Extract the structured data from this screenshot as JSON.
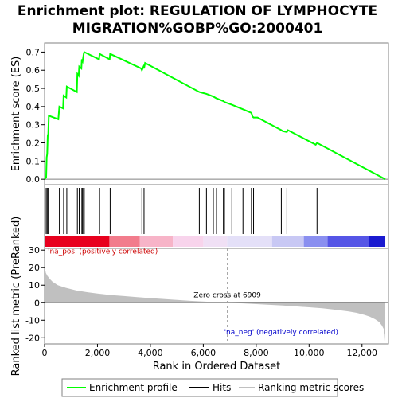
{
  "chart_data": [
    {
      "type": "line",
      "title": "Enrichment plot: REGULATION OF LYMPHOCYTE MIGRATION%GOBP%GO:2000401",
      "title_lines": [
        "Enrichment plot: REGULATION OF LYMPHOCYTE",
        "MIGRATION%GOBP%GO:2000401"
      ],
      "ylabel": "Enrichment score (ES)",
      "xlim": [
        0,
        13000
      ],
      "ylim": [
        -0.03,
        0.75
      ],
      "yticks": [
        0.0,
        0.1,
        0.2,
        0.3,
        0.4,
        0.5,
        0.6,
        0.7
      ],
      "ytick_labels": [
        "0.0",
        "0.1",
        "0.2",
        "0.3",
        "0.4",
        "0.5",
        "0.6",
        "0.7"
      ],
      "grid": false,
      "series": [
        {
          "name": "Enrichment profile",
          "color": "#00ff00",
          "x": [
            0,
            60,
            80,
            100,
            120,
            140,
            160,
            520,
            560,
            700,
            720,
            820,
            840,
            1220,
            1240,
            1290,
            1310,
            1390,
            1410,
            1440,
            1480,
            1500,
            2060,
            2080,
            2460,
            2480,
            3650,
            3680,
            3740,
            3760,
            3800,
            5850,
            6120,
            6380,
            6500,
            6760,
            6800,
            7080,
            7500,
            7820,
            7860,
            7900,
            8050,
            8950,
            9000,
            9160,
            9200,
            10250,
            10300,
            12880
          ],
          "y": [
            0.0,
            0.01,
            0.12,
            0.14,
            0.24,
            0.25,
            0.35,
            0.33,
            0.4,
            0.39,
            0.46,
            0.45,
            0.51,
            0.48,
            0.58,
            0.57,
            0.62,
            0.61,
            0.66,
            0.65,
            0.69,
            0.7,
            0.66,
            0.69,
            0.66,
            0.69,
            0.61,
            0.6,
            0.62,
            0.61,
            0.64,
            0.48,
            0.47,
            0.455,
            0.445,
            0.43,
            0.425,
            0.41,
            0.385,
            0.365,
            0.345,
            0.34,
            0.34,
            0.27,
            0.265,
            0.26,
            0.27,
            0.19,
            0.2,
            0.0
          ]
        }
      ]
    },
    {
      "type": "hits",
      "name": "Hits",
      "xlim": [
        0,
        13000
      ],
      "hit_positions": [
        60,
        100,
        140,
        160,
        560,
        720,
        840,
        1240,
        1310,
        1410,
        1440,
        1480,
        1500,
        2080,
        2480,
        3680,
        3760,
        5850,
        6120,
        6380,
        6500,
        6760,
        6800,
        7080,
        7500,
        7820,
        7900,
        8950,
        9160,
        10300
      ],
      "color_band": {
        "segments": [
          {
            "from": 0,
            "to": 2450,
            "color": "#e8001e"
          },
          {
            "from": 2450,
            "to": 3600,
            "color": "#f27c8c"
          },
          {
            "from": 3600,
            "to": 4850,
            "color": "#f7b4c8"
          },
          {
            "from": 4850,
            "to": 6000,
            "color": "#f8d4ec"
          },
          {
            "from": 6000,
            "to": 6900,
            "color": "#f0e0f5"
          },
          {
            "from": 6900,
            "to": 8600,
            "color": "#e4e0f8"
          },
          {
            "from": 8600,
            "to": 9800,
            "color": "#c8c8f4"
          },
          {
            "from": 9800,
            "to": 10700,
            "color": "#8a8ff0"
          },
          {
            "from": 10700,
            "to": 12250,
            "color": "#5555e6"
          },
          {
            "from": 12250,
            "to": 12880,
            "color": "#1a1ad0"
          }
        ]
      }
    },
    {
      "type": "area",
      "ylabel": "Ranked list metric (PreRanked)",
      "xlabel": "Rank in Ordered Dataset",
      "xlim": [
        0,
        13000
      ],
      "ylim": [
        -23.5,
        31
      ],
      "yticks": [
        -20,
        -10,
        0,
        10,
        20,
        30
      ],
      "ytick_labels": [
        "-20",
        "-10",
        "0",
        "10",
        "20",
        "30"
      ],
      "xticks": [
        0,
        2000,
        4000,
        6000,
        8000,
        10000,
        12000
      ],
      "xtick_labels": [
        "0",
        "2,000",
        "4,000",
        "6,000",
        "8,000",
        "10,000",
        "12,000"
      ],
      "x": [
        0,
        20,
        50,
        100,
        200,
        300,
        500,
        800,
        1200,
        1600,
        2000,
        2500,
        3000,
        3500,
        4000,
        4500,
        5000,
        5500,
        6000,
        6500,
        6909,
        7500,
        8000,
        8500,
        9000,
        9500,
        10000,
        10500,
        11000,
        11500,
        11800,
        12100,
        12300,
        12500,
        12650,
        12750,
        12820,
        12860,
        12880
      ],
      "y": [
        22,
        19,
        17,
        15.5,
        13.5,
        12,
        10,
        8.5,
        7,
        6,
        5.2,
        4.4,
        3.8,
        3.2,
        2.6,
        2.1,
        1.6,
        1.1,
        0.7,
        0.3,
        0.0,
        -0.4,
        -0.8,
        -1.2,
        -1.6,
        -2.1,
        -2.6,
        -3.2,
        -4.0,
        -5.0,
        -5.8,
        -7.0,
        -8.0,
        -9.5,
        -11.0,
        -13.0,
        -15.0,
        -18.0,
        -22.0
      ],
      "color": "#c0c0c0",
      "annotations": [
        {
          "text": "'na_pos' (positively correlated)",
          "x": 0,
          "color": "#cc0000"
        },
        {
          "text": "Zero cross at 6909",
          "x": 6909,
          "color": "#000000"
        },
        {
          "text": "'na_neg' (negatively correlated)",
          "x": 6909,
          "color": "#0000cc"
        }
      ]
    }
  ],
  "legend": {
    "placement": "bottom",
    "items": [
      {
        "label": "Enrichment profile",
        "color": "#00ff00"
      },
      {
        "label": "Hits",
        "color": "#000000"
      },
      {
        "label": "Ranking metric scores",
        "color": "#c0c0c0"
      }
    ]
  }
}
